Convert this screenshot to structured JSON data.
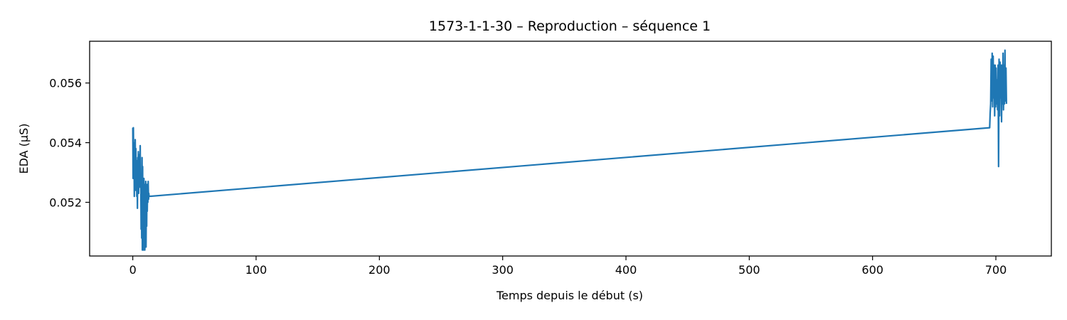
{
  "chart_data": {
    "type": "line",
    "title": "1573-1-1-30 – Reproduction – séquence 1",
    "xlabel": "Temps depuis le début (s)",
    "ylabel": "EDA (µS)",
    "xlim": [
      -35,
      745
    ],
    "ylim": [
      0.0502,
      0.0574
    ],
    "xticks": [
      0,
      100,
      200,
      300,
      400,
      500,
      600,
      700
    ],
    "yticks": [
      0.052,
      0.054,
      0.056
    ],
    "xtick_labels": [
      "0",
      "100",
      "200",
      "300",
      "400",
      "500",
      "600",
      "700"
    ],
    "ytick_labels": [
      "0.052",
      "0.054",
      "0.056"
    ],
    "grid": false,
    "colors": {
      "line": "#1f77b4",
      "axes": "#000000",
      "background": "#ffffff"
    },
    "series": [
      {
        "x": [
          0.0,
          0.25,
          0.5,
          0.75,
          1.0,
          1.25,
          1.5,
          1.75,
          2.0,
          2.25,
          2.5,
          2.75,
          3.0,
          3.25,
          3.5,
          3.75,
          4.0,
          4.25,
          4.5,
          4.75,
          5.0,
          5.25,
          5.5,
          5.75,
          6.0,
          6.25,
          6.5,
          6.75,
          7.0,
          7.25,
          7.5,
          7.75,
          8.0,
          8.25,
          8.5,
          8.75,
          9.0,
          9.25,
          9.5,
          9.75,
          10.0,
          10.25,
          10.5,
          10.75,
          11.0,
          11.25,
          11.5,
          11.75,
          12.0,
          12.25,
          12.5,
          12.75,
          13.0,
          13.25,
          13.5,
          695.0,
          695.4,
          695.8,
          696.2,
          696.6,
          697.0,
          697.4,
          697.8,
          698.2,
          698.6,
          699.0,
          699.4,
          699.8,
          700.2,
          700.6,
          701.0,
          701.4,
          701.8,
          702.2,
          702.6,
          703.0,
          703.4,
          703.8,
          704.2,
          704.6,
          705.0,
          705.4,
          705.8,
          706.2,
          706.6,
          707.0,
          707.4,
          707.8,
          708.2,
          708.6
        ],
        "y": [
          0.0545,
          0.0528,
          0.0545,
          0.053,
          0.054,
          0.0522,
          0.0536,
          0.0524,
          0.0541,
          0.0526,
          0.0538,
          0.0524,
          0.0534,
          0.0522,
          0.0532,
          0.0518,
          0.0535,
          0.0527,
          0.0537,
          0.0523,
          0.0536,
          0.0525,
          0.0532,
          0.0526,
          0.0539,
          0.0526,
          0.0528,
          0.0511,
          0.0527,
          0.0508,
          0.0535,
          0.0504,
          0.0532,
          0.0506,
          0.0524,
          0.0504,
          0.0528,
          0.0507,
          0.0526,
          0.0504,
          0.0526,
          0.051,
          0.0527,
          0.0505,
          0.052,
          0.0512,
          0.0526,
          0.0517,
          0.0525,
          0.052,
          0.0527,
          0.0521,
          0.0523,
          0.0522,
          0.0522,
          0.0545,
          0.055,
          0.0553,
          0.0568,
          0.0554,
          0.057,
          0.0552,
          0.0569,
          0.0555,
          0.0566,
          0.0549,
          0.0566,
          0.0552,
          0.0565,
          0.0553,
          0.0561,
          0.0551,
          0.0566,
          0.0532,
          0.0568,
          0.0549,
          0.0567,
          0.0555,
          0.0566,
          0.0547,
          0.0566,
          0.0553,
          0.057,
          0.0551,
          0.0566,
          0.0553,
          0.0571,
          0.0554,
          0.0565,
          0.0553
        ]
      }
    ]
  }
}
